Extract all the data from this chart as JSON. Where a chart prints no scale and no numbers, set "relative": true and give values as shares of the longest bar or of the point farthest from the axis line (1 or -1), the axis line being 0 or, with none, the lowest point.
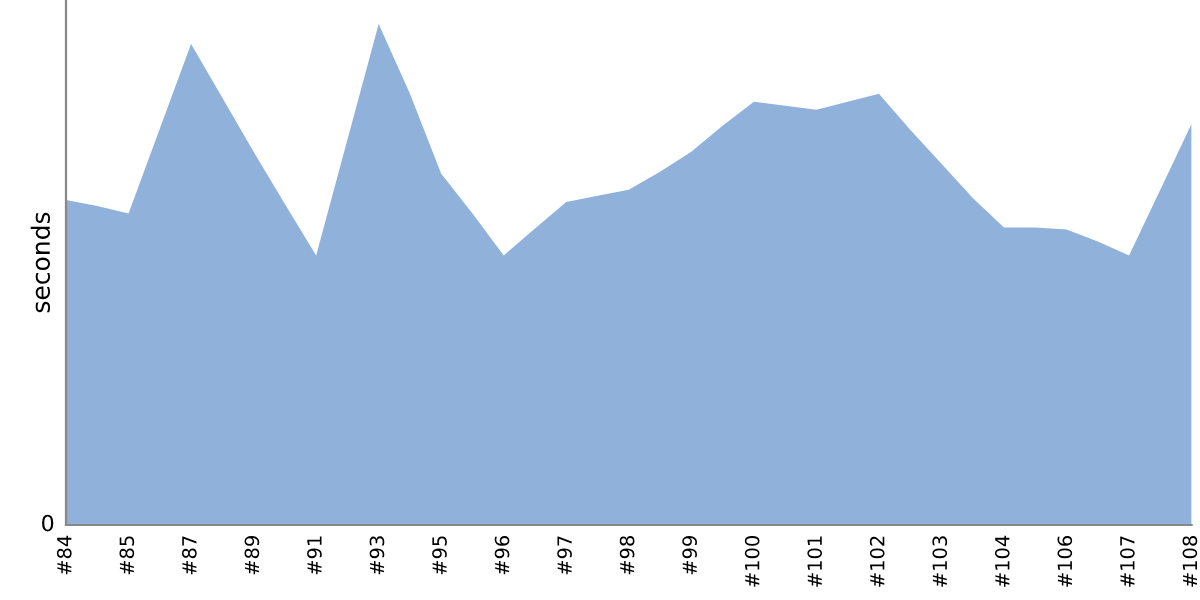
{
  "chart_data": {
    "type": "area",
    "ylabel": "seconds",
    "relative": true,
    "annotations": [
      "0"
    ],
    "color": "#8fb1da",
    "grid": false,
    "categories": [
      "#84",
      null,
      "#85",
      null,
      "#87",
      null,
      "#89",
      null,
      "#91",
      null,
      "#93",
      null,
      "#95",
      null,
      "#96",
      null,
      "#97",
      null,
      "#98",
      null,
      "#99",
      null,
      "#100",
      null,
      "#101",
      null,
      "#102",
      null,
      "#103",
      null,
      "#104",
      null,
      "#106",
      null,
      "#107",
      null,
      "#108"
    ],
    "values": [
      0.649,
      0.637,
      0.622,
      0.791,
      0.96,
      0.853,
      0.745,
      0.641,
      0.538,
      0.769,
      1,
      0.861,
      0.701,
      0.622,
      0.538,
      0.592,
      0.645,
      0.657,
      0.669,
      0.705,
      0.745,
      0.797,
      0.845,
      0.837,
      0.829,
      0.845,
      0.861,
      0.789,
      0.721,
      0.653,
      0.594,
      0.594,
      0.59,
      0.566,
      0.538,
      0.669,
      0.801
    ]
  }
}
